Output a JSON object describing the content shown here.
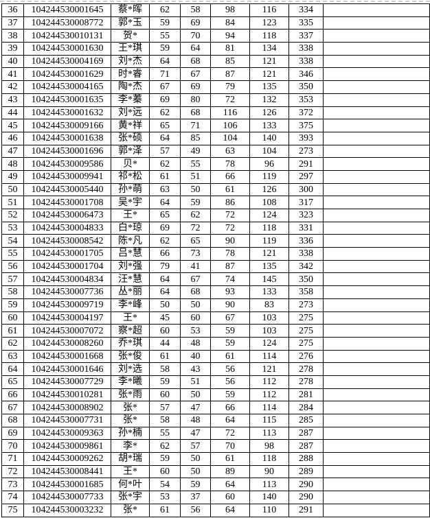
{
  "colors": {
    "border": "#000000",
    "text": "#000000",
    "background": "#ffffff",
    "page_break_dash": "#cccccc"
  },
  "table": {
    "column_roles": [
      "row-number",
      "candidate-id",
      "name",
      "score-1",
      "score-2",
      "score-3",
      "score-4",
      "total-score",
      "blank"
    ],
    "rows": [
      [
        36,
        "104244530001645",
        "蔡*晖",
        62,
        58,
        98,
        116,
        334,
        ""
      ],
      [
        37,
        "104244530008772",
        "郭*玉",
        59,
        69,
        84,
        123,
        335,
        ""
      ],
      [
        38,
        "104244530010131",
        "贺*",
        55,
        70,
        94,
        118,
        337,
        ""
      ],
      [
        39,
        "104244530001630",
        "王*琪",
        59,
        64,
        81,
        134,
        338,
        ""
      ],
      [
        40,
        "104244530004169",
        "刘*杰",
        64,
        68,
        85,
        121,
        338,
        ""
      ],
      [
        41,
        "104244530001629",
        "时*睿",
        71,
        67,
        87,
        121,
        346,
        ""
      ],
      [
        42,
        "104244530004165",
        "陶*杰",
        67,
        69,
        79,
        135,
        350,
        ""
      ],
      [
        43,
        "104244530001635",
        "李*蓁",
        69,
        80,
        72,
        132,
        353,
        ""
      ],
      [
        44,
        "104244530001632",
        "刘*远",
        62,
        68,
        116,
        126,
        372,
        ""
      ],
      [
        45,
        "104244530009166",
        "黄*祥",
        65,
        71,
        106,
        133,
        375,
        ""
      ],
      [
        46,
        "104244530001638",
        "张*硕",
        64,
        85,
        104,
        140,
        393,
        ""
      ],
      [
        47,
        "104244530001696",
        "郭*泽",
        57,
        49,
        63,
        104,
        273,
        ""
      ],
      [
        48,
        "104244530009586",
        "贝*",
        62,
        55,
        78,
        96,
        291,
        ""
      ],
      [
        49,
        "104244530009941",
        "祁*松",
        61,
        51,
        66,
        119,
        297,
        ""
      ],
      [
        50,
        "104244530005440",
        "孙*萌",
        63,
        50,
        61,
        126,
        300,
        ""
      ],
      [
        51,
        "104244530001708",
        "吴*宇",
        64,
        59,
        86,
        108,
        317,
        ""
      ],
      [
        52,
        "104244530006473",
        "王*",
        65,
        62,
        72,
        124,
        323,
        ""
      ],
      [
        53,
        "104244530004833",
        "白*琼",
        69,
        72,
        72,
        118,
        331,
        ""
      ],
      [
        54,
        "104244530008542",
        "陈*凡",
        62,
        65,
        90,
        119,
        336,
        ""
      ],
      [
        55,
        "104244530001705",
        "吕*慧",
        66,
        73,
        78,
        121,
        338,
        ""
      ],
      [
        56,
        "104244530001704",
        "刘*强",
        79,
        41,
        87,
        135,
        342,
        ""
      ],
      [
        57,
        "104244530004834",
        "汪*慧",
        64,
        67,
        74,
        145,
        350,
        ""
      ],
      [
        58,
        "104244530007736",
        "丛*丽",
        64,
        68,
        93,
        133,
        358,
        ""
      ],
      [
        59,
        "104244530009719",
        "李*峰",
        50,
        50,
        90,
        83,
        273,
        ""
      ],
      [
        60,
        "104244530004197",
        "王*",
        45,
        60,
        67,
        103,
        275,
        ""
      ],
      [
        61,
        "104244530007072",
        "察*超",
        60,
        53,
        59,
        103,
        275,
        ""
      ],
      [
        62,
        "104244530008260",
        "乔*琪",
        44,
        48,
        59,
        124,
        275,
        ""
      ],
      [
        63,
        "104244530001668",
        "张*俊",
        61,
        40,
        61,
        114,
        276,
        ""
      ],
      [
        64,
        "104244530001646",
        "刘*选",
        58,
        43,
        56,
        121,
        278,
        ""
      ],
      [
        65,
        "104244530007729",
        "李*曦",
        59,
        51,
        56,
        112,
        278,
        ""
      ],
      [
        66,
        "104244530010281",
        "张*雨",
        60,
        50,
        59,
        112,
        281,
        ""
      ],
      [
        67,
        "104244530008902",
        "张*",
        57,
        47,
        66,
        114,
        284,
        ""
      ],
      [
        68,
        "104244530007731",
        "张*",
        58,
        48,
        64,
        115,
        285,
        ""
      ],
      [
        69,
        "104244530009363",
        "孙*楠",
        55,
        47,
        72,
        113,
        287,
        ""
      ],
      [
        70,
        "104244530009861",
        "李*",
        62,
        57,
        70,
        98,
        287,
        ""
      ],
      [
        71,
        "104244530009262",
        "胡*瑞",
        59,
        50,
        61,
        118,
        288,
        ""
      ],
      [
        72,
        "104244530008441",
        "王*",
        60,
        50,
        89,
        90,
        289,
        ""
      ],
      [
        73,
        "104244530001685",
        "何*叶",
        54,
        59,
        64,
        113,
        290,
        ""
      ],
      [
        74,
        "104244530007733",
        "张*宇",
        53,
        37,
        60,
        140,
        290,
        ""
      ],
      [
        75,
        "104244530003232",
        "张*",
        61,
        56,
        64,
        110,
        291,
        ""
      ]
    ]
  }
}
